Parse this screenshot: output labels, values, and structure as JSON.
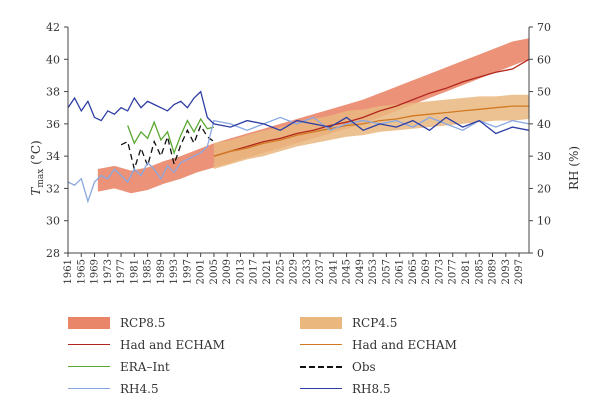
{
  "chart_data": {
    "type": "line",
    "title": "",
    "y_left": {
      "label_main": "T",
      "label_sub": "max",
      "label_unit": " (°C)",
      "range": [
        28,
        42
      ],
      "ticks": [
        28,
        30,
        32,
        34,
        36,
        38,
        40,
        42
      ]
    },
    "y_right": {
      "label": "RH (%)",
      "range": [
        0,
        70
      ],
      "ticks": [
        0,
        10,
        20,
        30,
        40,
        50,
        60,
        70
      ]
    },
    "x": {
      "range": [
        1961,
        2100
      ],
      "ticks": [
        1961,
        1965,
        1969,
        1973,
        1977,
        1981,
        1985,
        1989,
        1993,
        1997,
        2001,
        2005,
        2009,
        2013,
        2017,
        2021,
        2025,
        2029,
        2033,
        2037,
        2041,
        2045,
        2049,
        2053,
        2057,
        2061,
        2065,
        2069,
        2073,
        2077,
        2081,
        2085,
        2089,
        2093,
        2097
      ]
    },
    "bands": [
      {
        "name": "RCP8.5",
        "color": "#e9866a",
        "x": [
          1970,
          1975,
          1980,
          1985,
          1990,
          1995,
          2000,
          2005,
          2010,
          2015,
          2020,
          2025,
          2030,
          2035,
          2040,
          2045,
          2050,
          2055,
          2060,
          2065,
          2070,
          2075,
          2080,
          2085,
          2090,
          2095,
          2100
        ],
        "low": [
          31.8,
          32.0,
          31.7,
          31.9,
          32.3,
          32.6,
          33.0,
          33.3,
          33.6,
          33.9,
          34.2,
          34.5,
          34.8,
          35.1,
          35.4,
          35.7,
          36.0,
          36.4,
          36.8,
          37.2,
          37.6,
          38.0,
          38.4,
          38.8,
          39.2,
          39.6,
          40.0
        ],
        "high": [
          33.2,
          33.4,
          33.1,
          33.3,
          33.7,
          34.0,
          34.4,
          34.8,
          35.1,
          35.4,
          35.7,
          36.0,
          36.3,
          36.6,
          36.9,
          37.2,
          37.5,
          37.9,
          38.3,
          38.7,
          39.1,
          39.5,
          39.9,
          40.3,
          40.7,
          41.1,
          41.3
        ]
      },
      {
        "name": "RCP4.5",
        "color": "#eab77f",
        "x": [
          2005,
          2010,
          2015,
          2020,
          2025,
          2030,
          2035,
          2040,
          2045,
          2050,
          2055,
          2060,
          2065,
          2070,
          2075,
          2080,
          2085,
          2090,
          2095,
          2100
        ],
        "low": [
          33.2,
          33.5,
          33.8,
          34.0,
          34.3,
          34.6,
          34.8,
          35.0,
          35.2,
          35.3,
          35.5,
          35.6,
          35.7,
          35.8,
          35.9,
          36.0,
          36.1,
          36.2,
          36.2,
          36.3
        ],
        "high": [
          34.8,
          35.0,
          35.3,
          35.6,
          35.8,
          36.1,
          36.3,
          36.5,
          36.8,
          36.9,
          37.1,
          37.2,
          37.3,
          37.4,
          37.5,
          37.6,
          37.7,
          37.7,
          37.8,
          37.8
        ]
      }
    ],
    "series": [
      {
        "name": "Had and ECHAM",
        "axis": "left",
        "color": "#b3261e",
        "dash": "",
        "x": [
          2005,
          2010,
          2015,
          2020,
          2025,
          2030,
          2035,
          2040,
          2045,
          2050,
          2055,
          2060,
          2065,
          2070,
          2075,
          2080,
          2085,
          2090,
          2095,
          2100
        ],
        "y": [
          34.0,
          34.3,
          34.6,
          34.9,
          35.1,
          35.4,
          35.6,
          35.9,
          36.1,
          36.4,
          36.8,
          37.1,
          37.5,
          37.9,
          38.2,
          38.6,
          38.9,
          39.2,
          39.4,
          40.0
        ]
      },
      {
        "name": "Had and ECHAM",
        "axis": "left",
        "color": "#d17a22",
        "dash": "",
        "x": [
          2005,
          2010,
          2015,
          2020,
          2025,
          2030,
          2035,
          2040,
          2045,
          2050,
          2055,
          2060,
          2065,
          2070,
          2075,
          2080,
          2085,
          2090,
          2095,
          2100
        ],
        "y": [
          34.0,
          34.3,
          34.5,
          34.8,
          35.0,
          35.3,
          35.5,
          35.7,
          35.9,
          36.0,
          36.2,
          36.3,
          36.5,
          36.6,
          36.7,
          36.8,
          36.9,
          37.0,
          37.1,
          37.1
        ]
      },
      {
        "name": "ERA–Int",
        "axis": "left",
        "color": "#5aa832",
        "dash": "",
        "x": [
          1979,
          1981,
          1983,
          1985,
          1987,
          1989,
          1991,
          1993,
          1995,
          1997,
          1999,
          2001,
          2003,
          2005
        ],
        "y": [
          35.9,
          34.8,
          35.5,
          35.1,
          36.1,
          35.0,
          35.5,
          34.2,
          35.3,
          36.2,
          35.5,
          36.3,
          35.7,
          35.8
        ]
      },
      {
        "name": "Obs",
        "axis": "left",
        "color": "#111111",
        "dash": "6,4",
        "x": [
          1977,
          1979,
          1981,
          1983,
          1985,
          1987,
          1989,
          1991,
          1993,
          1995,
          1997,
          1999,
          2001,
          2003,
          2005
        ],
        "y": [
          34.7,
          34.9,
          33.2,
          34.5,
          33.4,
          34.9,
          34.0,
          35.2,
          33.5,
          34.7,
          35.6,
          34.8,
          35.9,
          35.2,
          34.9
        ]
      },
      {
        "name": "RH4.5",
        "axis": "right",
        "color": "#8aa8e0",
        "dash": "",
        "x": [
          1961,
          1963,
          1965,
          1967,
          1969,
          1971,
          1973,
          1975,
          1977,
          1979,
          1981,
          1983,
          1985,
          1987,
          1989,
          1991,
          1993,
          1995,
          1997,
          1999,
          2001,
          2003,
          2005,
          2010,
          2015,
          2020,
          2025,
          2030,
          2035,
          2040,
          2045,
          2050,
          2055,
          2060,
          2065,
          2070,
          2075,
          2080,
          2085,
          2090,
          2095,
          2100
        ],
        "y": [
          22,
          21,
          23,
          16,
          22,
          24,
          23,
          26,
          24,
          22,
          26,
          24,
          28,
          26,
          23,
          27,
          25,
          28,
          29,
          30,
          31,
          33,
          41,
          40,
          38,
          40,
          42,
          40,
          42,
          38,
          40,
          41,
          40,
          41,
          39,
          42,
          40,
          38,
          41,
          39,
          41,
          40
        ]
      },
      {
        "name": "RH8.5",
        "axis": "right",
        "color": "#2e3ea4",
        "dash": "",
        "x": [
          1961,
          1963,
          1965,
          1967,
          1969,
          1971,
          1973,
          1975,
          1977,
          1979,
          1981,
          1983,
          1985,
          1987,
          1989,
          1991,
          1993,
          1995,
          1997,
          1999,
          2001,
          2003,
          2005,
          2010,
          2015,
          2020,
          2025,
          2030,
          2035,
          2040,
          2045,
          2050,
          2055,
          2060,
          2065,
          2070,
          2075,
          2080,
          2085,
          2090,
          2095,
          2100
        ],
        "y": [
          45,
          48,
          44,
          47,
          42,
          41,
          44,
          43,
          45,
          44,
          48,
          45,
          47,
          46,
          45,
          44,
          46,
          47,
          45,
          48,
          50,
          42,
          40,
          39,
          41,
          40,
          38,
          41,
          40,
          39,
          42,
          38,
          40,
          39,
          41,
          38,
          42,
          39,
          41,
          37,
          39,
          38
        ]
      }
    ]
  },
  "legend": {
    "items": [
      {
        "label": "RCP8.5",
        "kind": "band",
        "color": "#e9866a"
      },
      {
        "label": "RCP4.5",
        "kind": "band",
        "color": "#eab77f"
      },
      {
        "label": "Had and ECHAM",
        "kind": "line",
        "color": "#b3261e",
        "dash": ""
      },
      {
        "label": "Had and ECHAM",
        "kind": "line",
        "color": "#d17a22",
        "dash": ""
      },
      {
        "label": "ERA–Int",
        "kind": "line",
        "color": "#5aa832",
        "dash": ""
      },
      {
        "label": "Obs",
        "kind": "line",
        "color": "#111111",
        "dash": "dashed"
      },
      {
        "label": "RH4.5",
        "kind": "line",
        "color": "#8aa8e0",
        "dash": ""
      },
      {
        "label": "RH8.5",
        "kind": "line",
        "color": "#2e3ea4",
        "dash": ""
      }
    ]
  }
}
